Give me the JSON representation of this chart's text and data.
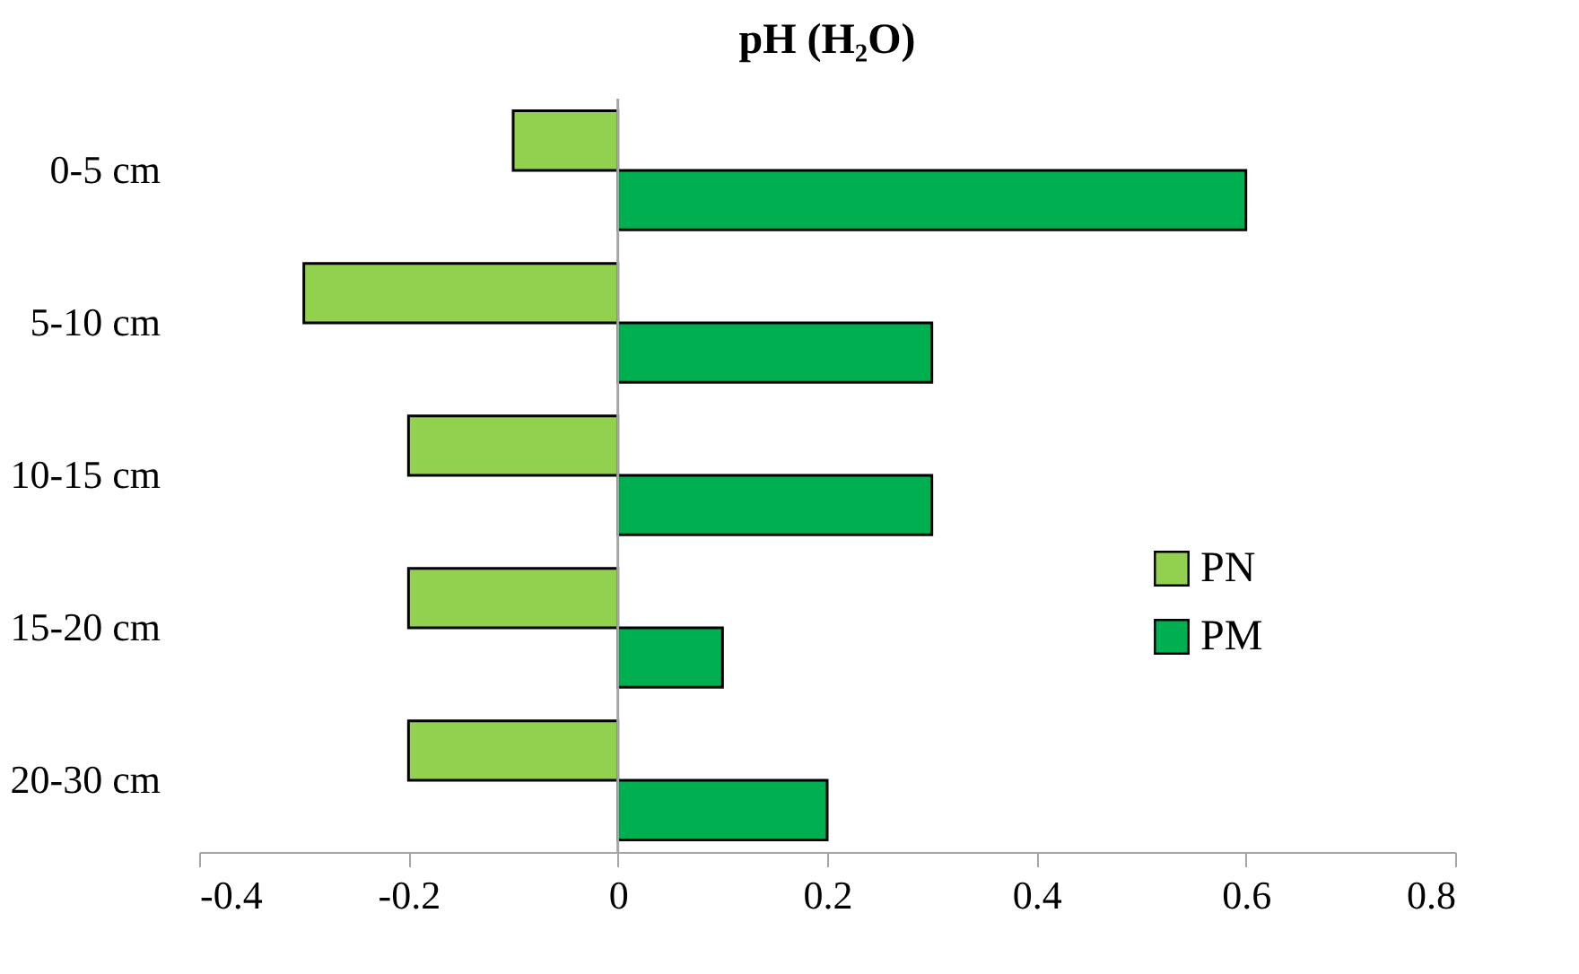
{
  "chart_data": {
    "type": "bar",
    "orientation": "horizontal",
    "title": "pH (H₂O)",
    "categories": [
      "0-5 cm",
      "5-10 cm",
      "10-15 cm",
      "15-20 cm",
      "20-30 cm"
    ],
    "series": [
      {
        "name": "PN",
        "color": "#92d050",
        "values": [
          -0.1,
          -0.3,
          -0.2,
          -0.2,
          -0.2
        ]
      },
      {
        "name": "PM",
        "color": "#00b050",
        "values": [
          0.6,
          0.3,
          0.3,
          0.1,
          0.2
        ]
      }
    ],
    "xlim": [
      -0.4,
      0.8
    ],
    "xticks": [
      -0.4,
      -0.2,
      0,
      0.2,
      0.4,
      0.6,
      0.8
    ],
    "ref_lines": [
      {
        "axis": "x",
        "value": 0,
        "color": "#a6a6a6"
      }
    ],
    "legend": "right",
    "grid": false
  }
}
